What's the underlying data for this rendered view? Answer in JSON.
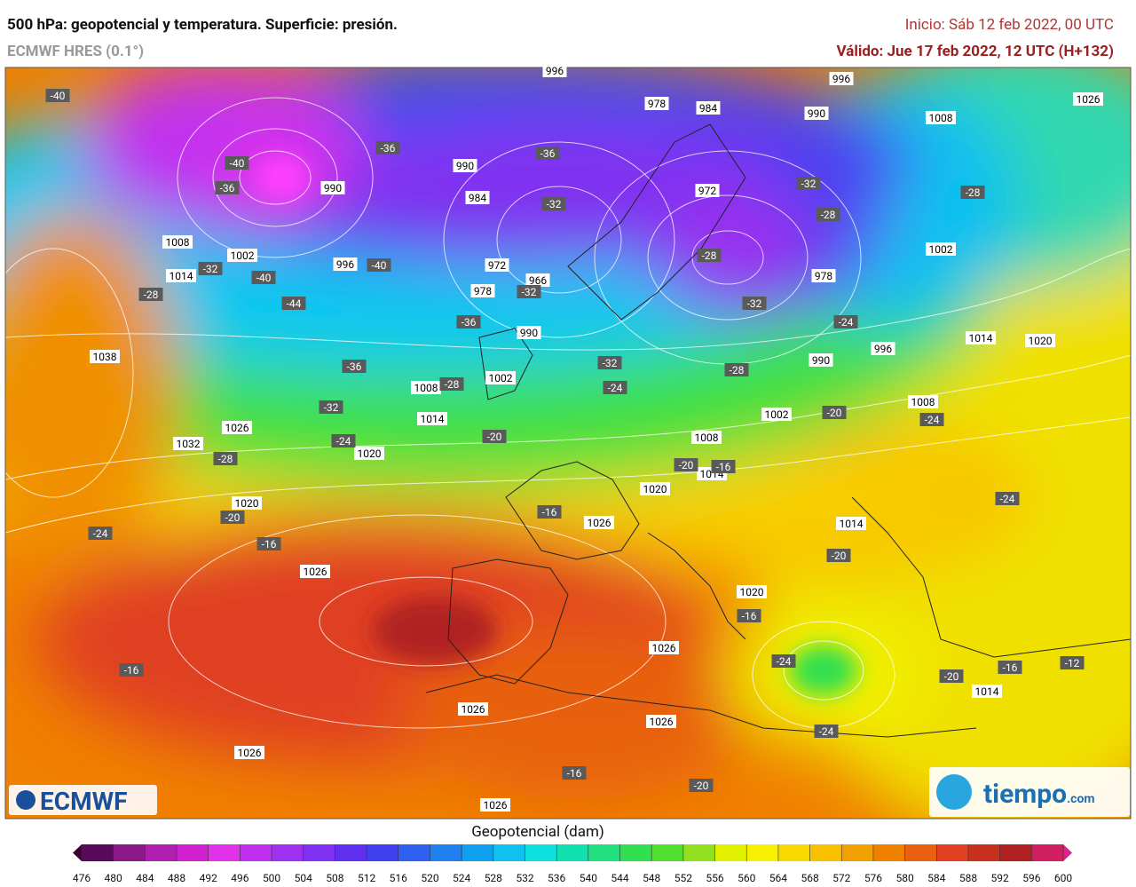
{
  "header": {
    "title": "500 hPa: geopotencial y temperatura. Superficie: presión.",
    "model": "ECMWF HRES (0.1°)",
    "init": "Inicio: Sáb 12 feb 2022, 00 UTC",
    "valid": "Válido: Jue 17 feb 2022, 12 UTC (H+132)"
  },
  "map": {
    "pressure_labels": [
      "996",
      "996",
      "978",
      "984",
      "990",
      "1008",
      "1026",
      "990",
      "990",
      "984",
      "972",
      "1008",
      "1002",
      "996",
      "1014",
      "972",
      "978",
      "966",
      "978",
      "1002",
      "990",
      "1014",
      "1020",
      "996",
      "990",
      "1038",
      "1008",
      "1002",
      "1014",
      "1002",
      "1008",
      "1032",
      "1026",
      "1020",
      "1008",
      "1014",
      "1020",
      "1020",
      "1026",
      "1014",
      "1026",
      "1020",
      "1026",
      "1014",
      "1026",
      "1026",
      "1026",
      "1026"
    ],
    "temperature_labels": [
      "-40",
      "-40",
      "-36",
      "-36",
      "-36",
      "-32",
      "-32",
      "-28",
      "-28",
      "-32",
      "-40",
      "-40",
      "-28",
      "-44",
      "-32",
      "-28",
      "-32",
      "-24",
      "-36",
      "-36",
      "-32",
      "-28",
      "-24",
      "-28",
      "-32",
      "-20",
      "-24",
      "-24",
      "-20",
      "-28",
      "-20",
      "-16",
      "-16",
      "-20",
      "-24",
      "-16",
      "-24",
      "-20",
      "-16",
      "-24",
      "-16",
      "-12",
      "-20",
      "-16",
      "-24",
      "-16",
      "-20"
    ],
    "logo_left": "ECMWF",
    "logo_right": "tiempo",
    "logo_right_suffix": ".com"
  },
  "colorbar": {
    "title": "Geopotencial (dam)",
    "ticks": [
      476,
      480,
      484,
      488,
      492,
      496,
      500,
      504,
      508,
      512,
      516,
      520,
      524,
      528,
      532,
      536,
      540,
      544,
      548,
      552,
      556,
      560,
      564,
      568,
      572,
      576,
      580,
      584,
      588,
      592,
      596,
      600
    ],
    "under_color": "#3a0030",
    "over_color": "#e0208a",
    "colors": [
      "#5a0a5a",
      "#8a1a8a",
      "#b020b0",
      "#d020d0",
      "#e030e8",
      "#c030f0",
      "#a030f0",
      "#8030f0",
      "#6030f0",
      "#4040f0",
      "#3060f0",
      "#2080f0",
      "#10a0f0",
      "#10c0f0",
      "#10e0e0",
      "#10e0b0",
      "#20e080",
      "#30e050",
      "#50e030",
      "#90e020",
      "#e0f000",
      "#f8f000",
      "#f8d800",
      "#f8c000",
      "#f0a000",
      "#f08000",
      "#e86010",
      "#e04020",
      "#c83020",
      "#b02020",
      "#d02060"
    ]
  }
}
